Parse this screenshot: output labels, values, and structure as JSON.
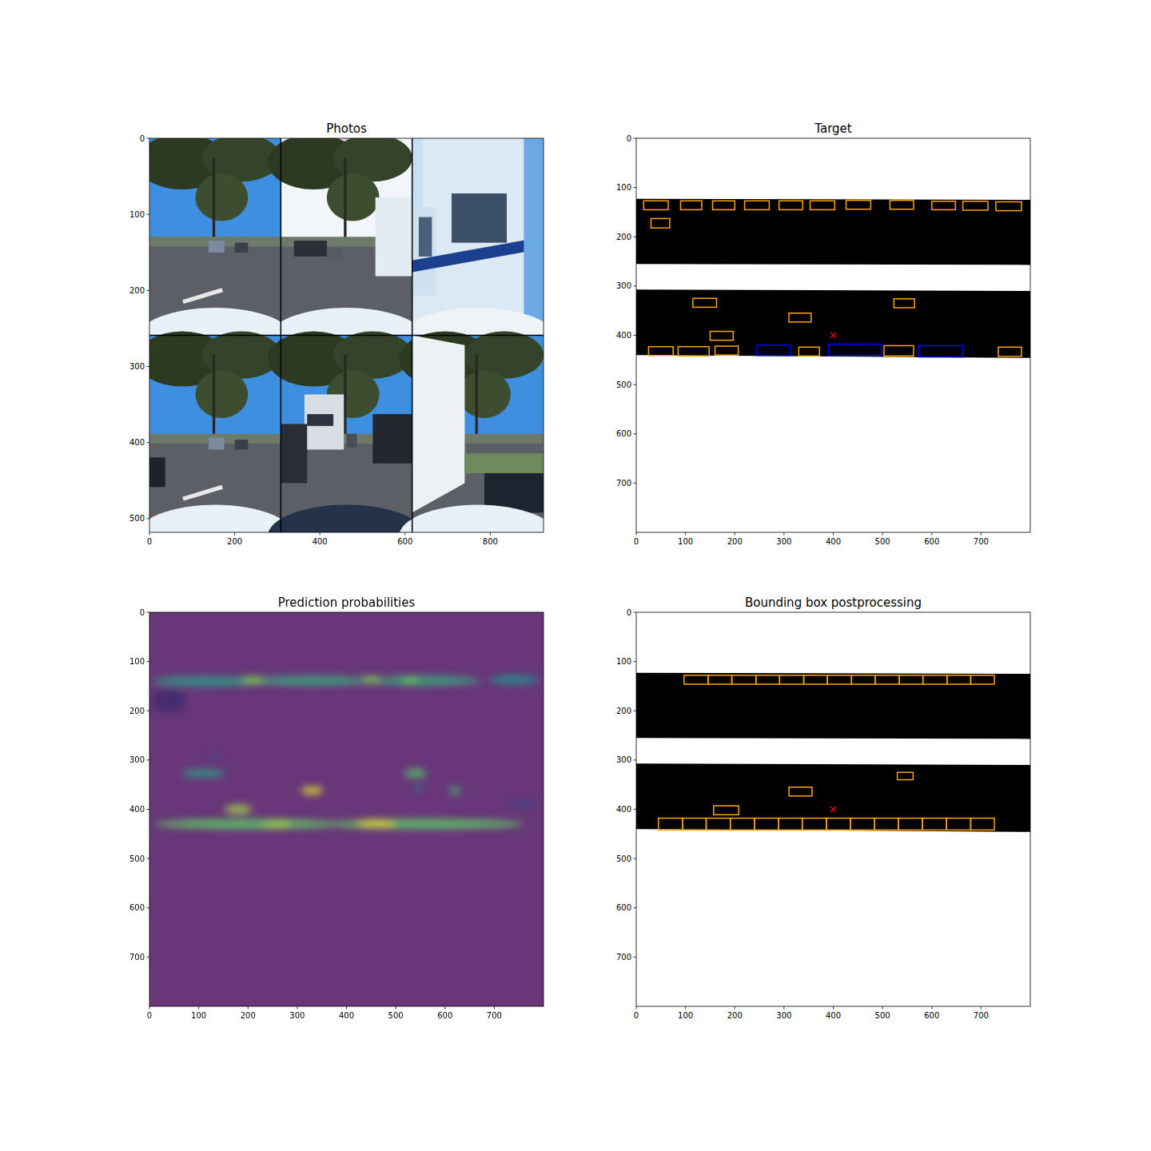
{
  "chart_data": [
    {
      "type": "image",
      "title": "Photos",
      "xlim": [
        0,
        925
      ],
      "ylim": [
        518,
        0
      ],
      "xticks": [
        0,
        200,
        400,
        600,
        800
      ],
      "yticks": [
        0,
        100,
        200,
        300,
        400,
        500
      ]
    },
    {
      "type": "boxes",
      "title": "Target",
      "xlim": [
        0,
        800
      ],
      "ylim": [
        800,
        0
      ],
      "xticks": [
        0,
        100,
        200,
        300,
        400,
        500,
        600,
        700
      ],
      "yticks": [
        0,
        100,
        200,
        300,
        400,
        500,
        600,
        700
      ],
      "roads": [
        [
          [
            0,
            123
          ],
          [
            800,
            125
          ],
          [
            800,
            257
          ],
          [
            0,
            255
          ]
        ],
        [
          [
            0,
            307
          ],
          [
            800,
            310
          ],
          [
            800,
            446
          ],
          [
            0,
            440
          ]
        ]
      ],
      "ego": [
        400,
        400
      ],
      "marker": "x",
      "boxes": [
        {
          "color": "orange",
          "values": [
            [
              15,
              127,
              65,
              145
            ],
            [
              90,
              127,
              133,
              145
            ],
            [
              155,
              127,
              200,
              145
            ],
            [
              220,
              127,
              270,
              145
            ],
            [
              290,
              127,
              338,
              145
            ],
            [
              353,
              127,
              403,
              145
            ],
            [
              426,
              126,
              476,
              144
            ],
            [
              515,
              126,
              563,
              144
            ],
            [
              600,
              128,
              648,
              145
            ],
            [
              663,
              128,
              714,
              146
            ],
            [
              730,
              129,
              782,
              147
            ],
            [
              30,
              163,
              68,
              182
            ],
            [
              115,
              325,
              163,
              343
            ],
            [
              310,
              355,
              355,
              373
            ],
            [
              523,
              326,
              565,
              344
            ],
            [
              150,
              392,
              197,
              410
            ],
            [
              25,
              423,
              75,
              441
            ],
            [
              85,
              423,
              148,
              442
            ],
            [
              160,
              422,
              207,
              440
            ],
            [
              330,
              424,
              372,
              442
            ],
            [
              503,
              421,
              563,
              442
            ],
            [
              735,
              424,
              782,
              443
            ]
          ]
        },
        {
          "color": "blue",
          "values": [
            [
              245,
              420,
              313,
              441
            ],
            [
              390,
              418,
              498,
              441
            ],
            [
              573,
              421,
              663,
              444
            ]
          ]
        }
      ]
    },
    {
      "type": "heatmap",
      "title": "Prediction probabilities",
      "xlim": [
        0,
        800
      ],
      "ylim": [
        800,
        0
      ],
      "xticks": [
        0,
        100,
        200,
        300,
        400,
        500,
        600,
        700
      ],
      "yticks": [
        0,
        100,
        200,
        300,
        400,
        500,
        600,
        700
      ],
      "color": "#693779",
      "blobs": [
        {
          "x": 120,
          "y": 140,
          "width": 230,
          "height": 20,
          "value": 0.55
        },
        {
          "x": 330,
          "y": 139,
          "width": 240,
          "height": 20,
          "value": 0.6
        },
        {
          "x": 560,
          "y": 139,
          "width": 220,
          "height": 20,
          "value": 0.6
        },
        {
          "x": 740,
          "y": 137,
          "width": 100,
          "height": 18,
          "value": 0.5
        },
        {
          "x": 210,
          "y": 138,
          "width": 50,
          "height": 16,
          "value": 0.8
        },
        {
          "x": 450,
          "y": 137,
          "width": 40,
          "height": 16,
          "value": 0.8
        },
        {
          "x": 530,
          "y": 138,
          "width": 40,
          "height": 16,
          "value": 0.75
        },
        {
          "x": 40,
          "y": 180,
          "width": 70,
          "height": 50,
          "value": 0.12
        },
        {
          "x": 130,
          "y": 295,
          "width": 25,
          "height": 10,
          "value": 0.25
        },
        {
          "x": 110,
          "y": 327,
          "width": 90,
          "height": 16,
          "value": 0.55
        },
        {
          "x": 540,
          "y": 327,
          "width": 45,
          "height": 18,
          "value": 0.7
        },
        {
          "x": 545,
          "y": 357,
          "width": 16,
          "height": 12,
          "value": 0.45
        },
        {
          "x": 330,
          "y": 362,
          "width": 45,
          "height": 16,
          "value": 0.95
        },
        {
          "x": 620,
          "y": 362,
          "width": 25,
          "height": 14,
          "value": 0.65
        },
        {
          "x": 180,
          "y": 400,
          "width": 55,
          "height": 18,
          "value": 0.85
        },
        {
          "x": 760,
          "y": 390,
          "width": 55,
          "height": 14,
          "value": 0.2
        },
        {
          "x": 200,
          "y": 430,
          "width": 380,
          "height": 20,
          "value": 0.75
        },
        {
          "x": 560,
          "y": 430,
          "width": 400,
          "height": 20,
          "value": 0.75
        },
        {
          "x": 460,
          "y": 429,
          "width": 80,
          "height": 16,
          "value": 0.95
        },
        {
          "x": 260,
          "y": 430,
          "width": 60,
          "height": 16,
          "value": 0.85
        }
      ]
    },
    {
      "type": "boxes",
      "title": "Bounding box postprocessing",
      "xlim": [
        0,
        800
      ],
      "ylim": [
        800,
        0
      ],
      "xticks": [
        0,
        100,
        200,
        300,
        400,
        500,
        600,
        700
      ],
      "yticks": [
        0,
        100,
        200,
        300,
        400,
        500,
        600,
        700
      ],
      "roads": [
        [
          [
            0,
            123
          ],
          [
            800,
            125
          ],
          [
            800,
            257
          ],
          [
            0,
            255
          ]
        ],
        [
          [
            0,
            307
          ],
          [
            800,
            310
          ],
          [
            800,
            446
          ],
          [
            0,
            440
          ]
        ]
      ],
      "ego": [
        400,
        400
      ],
      "marker": "x",
      "boxes": [
        {
          "color": "orange",
          "values": [
            [
              97,
              128,
              146,
              146
            ],
            [
              146,
              128,
              194,
              146
            ],
            [
              194,
              128,
              243,
              146
            ],
            [
              243,
              128,
              291,
              146
            ],
            [
              291,
              128,
              340,
              146
            ],
            [
              340,
              128,
              388,
              146
            ],
            [
              388,
              128,
              437,
              146
            ],
            [
              437,
              128,
              485,
              146
            ],
            [
              485,
              128,
              534,
              146
            ],
            [
              534,
              128,
              582,
              146
            ],
            [
              582,
              128,
              631,
              146
            ],
            [
              631,
              128,
              679,
              146
            ],
            [
              679,
              128,
              727,
              146
            ],
            [
              45,
              418,
              94,
              442
            ],
            [
              94,
              418,
              142,
              442
            ],
            [
              142,
              418,
              191,
              442
            ],
            [
              191,
              418,
              240,
              442
            ],
            [
              240,
              418,
              289,
              442
            ],
            [
              289,
              418,
              337,
              442
            ],
            [
              337,
              418,
              386,
              442
            ],
            [
              386,
              418,
              435,
              442
            ],
            [
              435,
              418,
              484,
              442
            ],
            [
              484,
              418,
              532,
              442
            ],
            [
              532,
              418,
              581,
              442
            ],
            [
              581,
              418,
              630,
              442
            ],
            [
              630,
              418,
              679,
              442
            ],
            [
              679,
              418,
              727,
              442
            ],
            [
              530,
              325,
              562,
              340
            ],
            [
              310,
              355,
              357,
              373
            ],
            [
              157,
              393,
              208,
              411
            ]
          ]
        }
      ]
    }
  ]
}
